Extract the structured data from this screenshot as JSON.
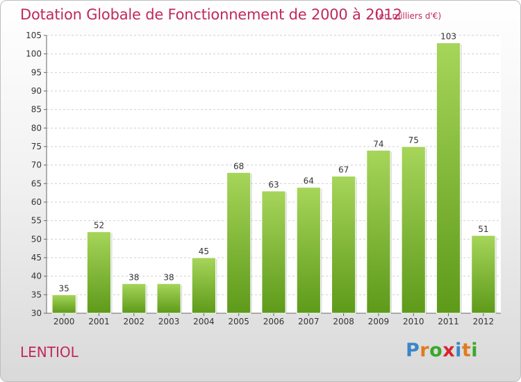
{
  "header": {
    "title": "Dotation Globale de Fonctionnement de 2000 à 2012",
    "unit": "(en milliers d'€)"
  },
  "footer": {
    "commune": "LENTIOL",
    "logo_letters": [
      "P",
      "r",
      "o",
      "x",
      "i",
      "t",
      "i"
    ]
  },
  "colors": {
    "title": "#c0285e",
    "bar_light": "#a6d55a",
    "bar_dark": "#5e9a1a",
    "logo": [
      "#3a86c8",
      "#e07b1f",
      "#3aa82a",
      "#d6262f",
      "#3a86c8",
      "#e07b1f",
      "#3aa82a"
    ]
  },
  "chart_data": {
    "type": "bar",
    "categories": [
      "2000",
      "2001",
      "2002",
      "2003",
      "2004",
      "2005",
      "2006",
      "2007",
      "2008",
      "2009",
      "2010",
      "2011",
      "2012"
    ],
    "values": [
      35,
      52,
      38,
      38,
      45,
      68,
      63,
      64,
      67,
      74,
      75,
      103,
      51
    ],
    "ylim": [
      30,
      105
    ],
    "yticks": [
      30,
      35,
      40,
      45,
      50,
      55,
      60,
      65,
      70,
      75,
      80,
      85,
      90,
      95,
      100,
      105
    ],
    "grid": true,
    "xlabel": "",
    "ylabel": ""
  }
}
